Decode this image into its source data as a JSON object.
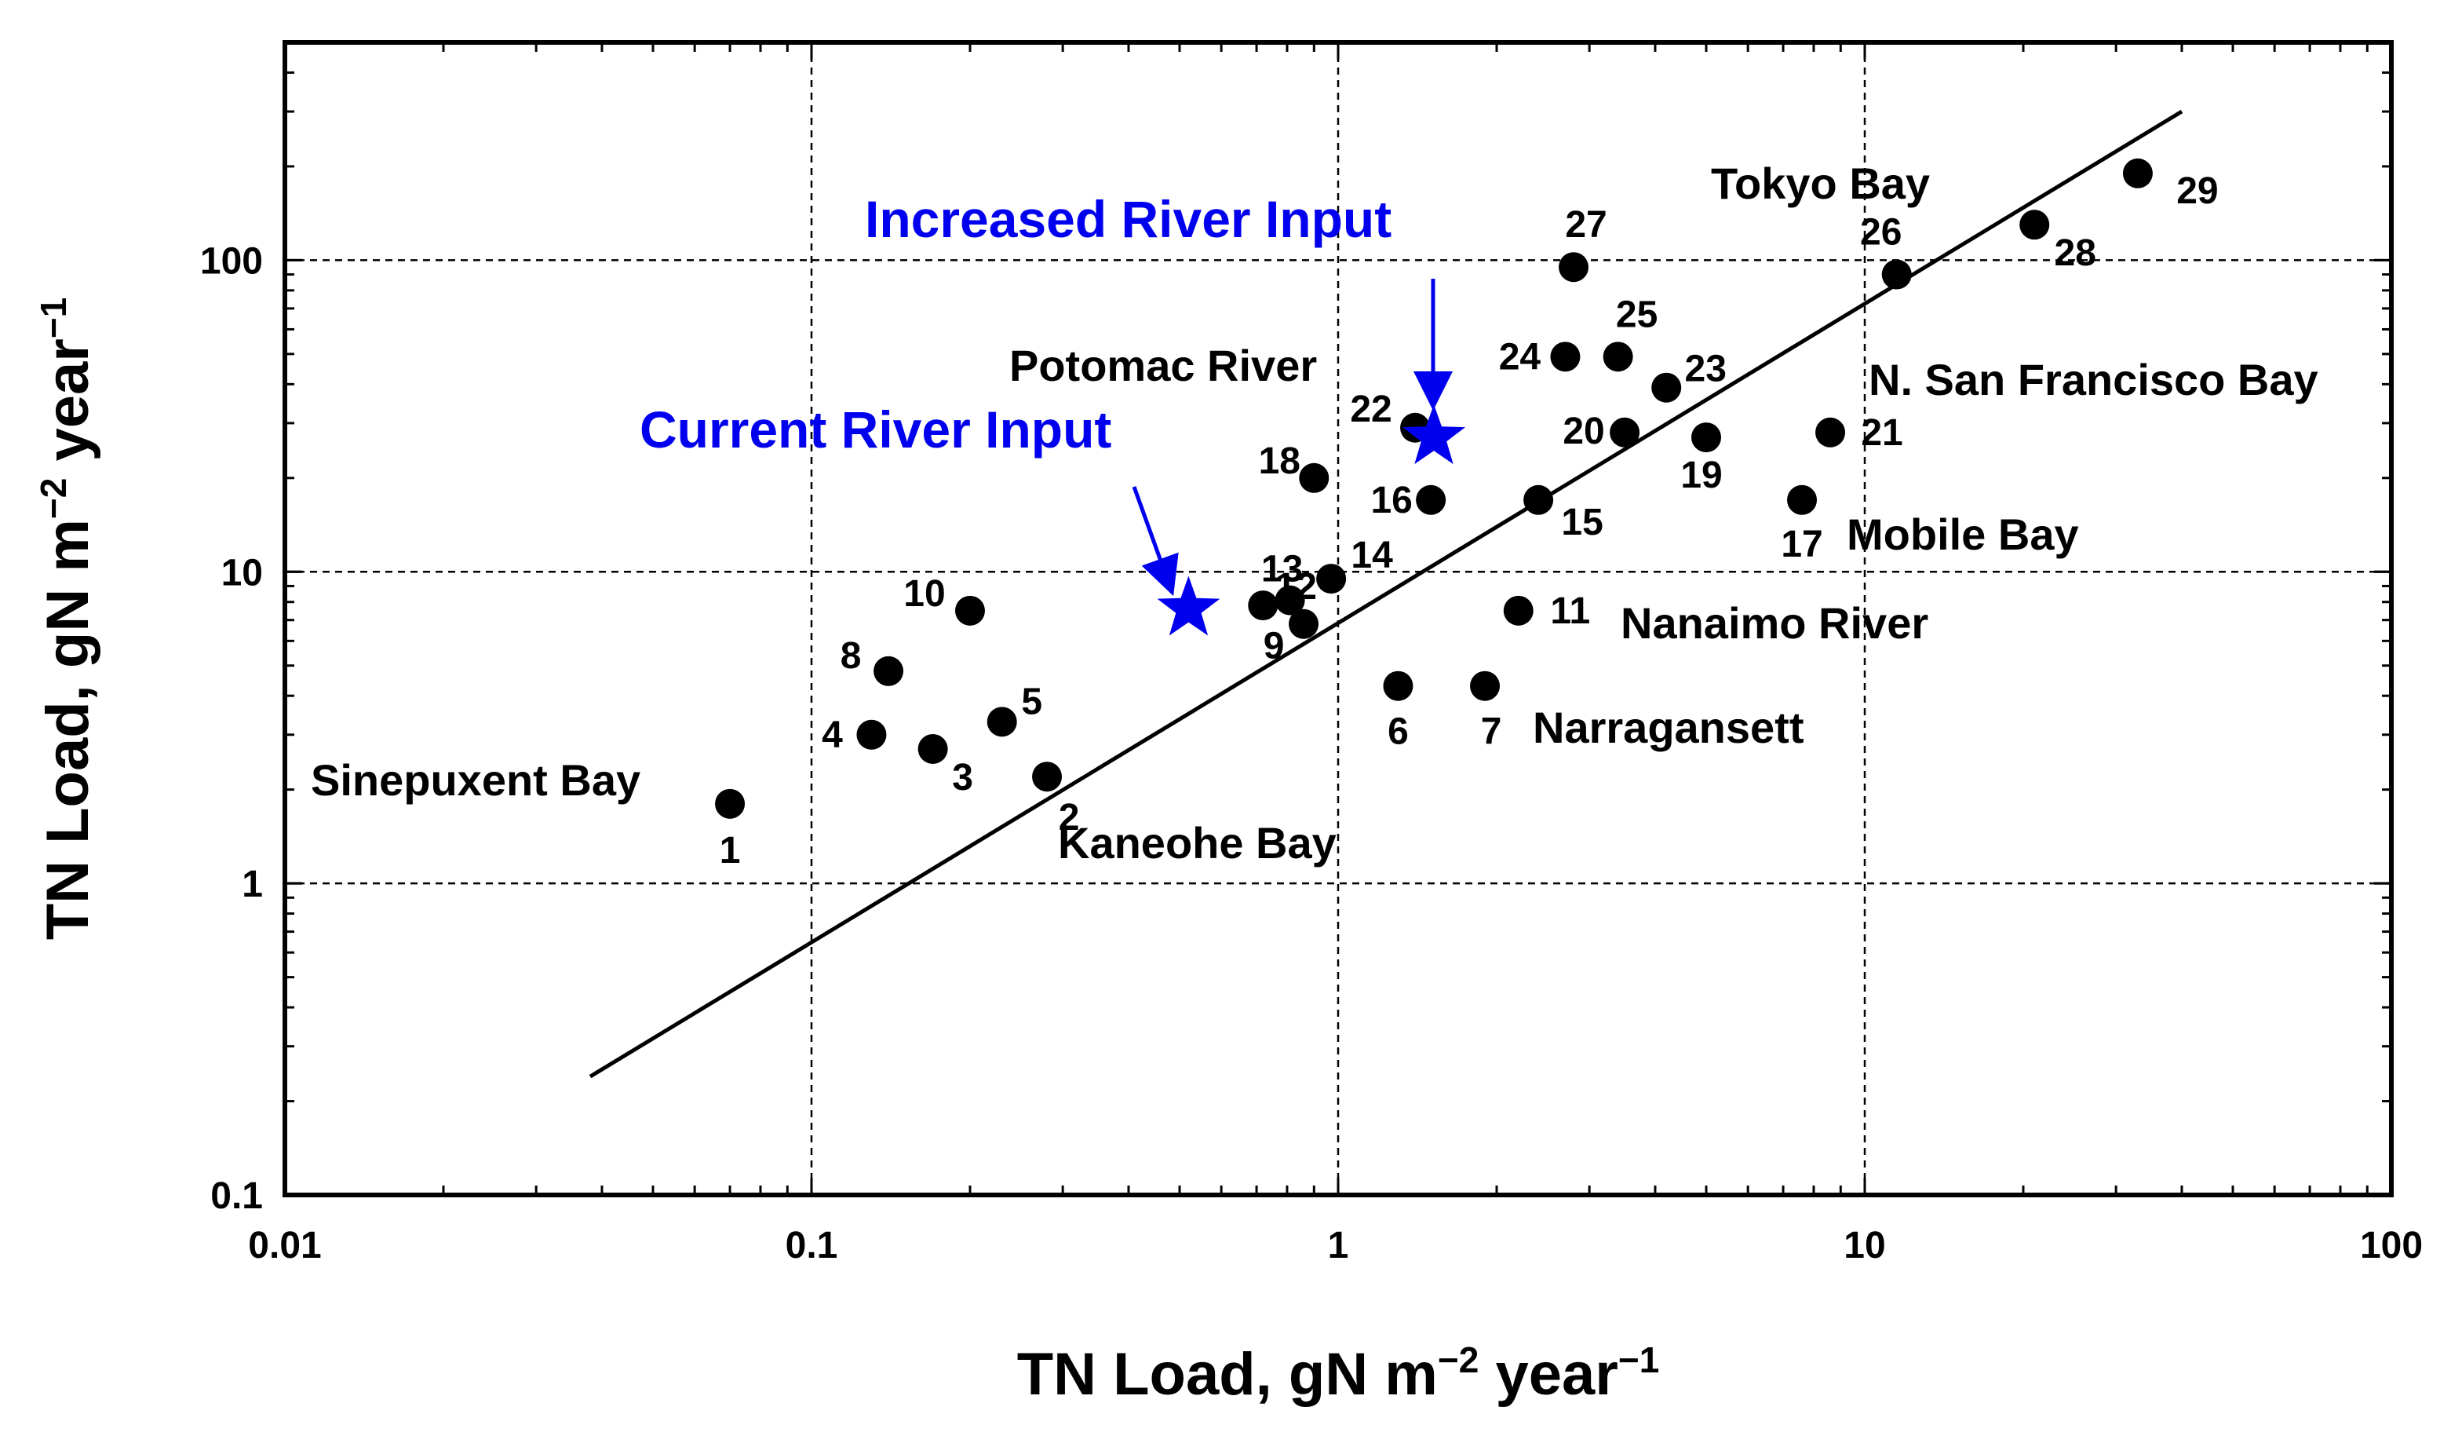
{
  "chart_data": {
    "type": "scatter",
    "title": "",
    "xlabel": "TN Load, gN m−2 year−1",
    "ylabel": "TN Load, gN m−2 year−1",
    "xscale": "log",
    "yscale": "log",
    "xlim": [
      0.01,
      100
    ],
    "ylim": [
      0.1,
      500
    ],
    "grid": true,
    "x_ticks": [
      0.01,
      0.1,
      1,
      10,
      100
    ],
    "x_tick_labels": [
      "0.01",
      "0.1",
      "1",
      "10",
      "100"
    ],
    "y_ticks": [
      0.1,
      1,
      10,
      100
    ],
    "y_tick_labels": [
      "0.1",
      "1",
      "10",
      "100"
    ],
    "axis_title_text": "TN Load, gN m",
    "axis_title_exp1": "−2",
    "axis_title_mid": " year",
    "axis_title_exp2": "−1",
    "points": [
      {
        "id": "1",
        "x": 0.07,
        "y": 1.8
      },
      {
        "id": "2",
        "x": 0.28,
        "y": 2.2
      },
      {
        "id": "3",
        "x": 0.17,
        "y": 2.7
      },
      {
        "id": "4",
        "x": 0.13,
        "y": 3.0
      },
      {
        "id": "5",
        "x": 0.23,
        "y": 3.3
      },
      {
        "id": "6",
        "x": 1.3,
        "y": 4.3
      },
      {
        "id": "7",
        "x": 1.9,
        "y": 4.3
      },
      {
        "id": "8",
        "x": 0.14,
        "y": 4.8
      },
      {
        "id": "9",
        "x": 0.86,
        "y": 6.8
      },
      {
        "id": "10",
        "x": 0.2,
        "y": 7.5
      },
      {
        "id": "11",
        "x": 2.2,
        "y": 7.5
      },
      {
        "id": "12",
        "x": 0.72,
        "y": 7.8
      },
      {
        "id": "13",
        "x": 0.81,
        "y": 8.1
      },
      {
        "id": "14",
        "x": 0.97,
        "y": 9.5
      },
      {
        "id": "15",
        "x": 2.4,
        "y": 17
      },
      {
        "id": "16",
        "x": 1.5,
        "y": 17
      },
      {
        "id": "17",
        "x": 7.6,
        "y": 17
      },
      {
        "id": "18",
        "x": 0.9,
        "y": 20
      },
      {
        "id": "19",
        "x": 5.0,
        "y": 27
      },
      {
        "id": "20",
        "x": 3.5,
        "y": 28
      },
      {
        "id": "21",
        "x": 8.6,
        "y": 28
      },
      {
        "id": "22",
        "x": 1.4,
        "y": 29
      },
      {
        "id": "23",
        "x": 4.2,
        "y": 39
      },
      {
        "id": "24",
        "x": 2.7,
        "y": 49
      },
      {
        "id": "25",
        "x": 3.4,
        "y": 49
      },
      {
        "id": "26",
        "x": 11.5,
        "y": 90
      },
      {
        "id": "27",
        "x": 2.8,
        "y": 95
      },
      {
        "id": "28",
        "x": 21,
        "y": 130
      },
      {
        "id": "29",
        "x": 33,
        "y": 190
      }
    ],
    "stars": [
      {
        "name": "Current River Input",
        "x": 0.52,
        "y": 7.6,
        "color": "#0000ee"
      },
      {
        "name": "Increased River Input",
        "x": 1.52,
        "y": 27,
        "color": "#0000ee"
      }
    ],
    "regression_line": {
      "x": [
        0.038,
        40
      ],
      "y": [
        0.24,
        300
      ]
    },
    "site_labels": {
      "sinepuxent": "Sinepuxent Bay",
      "kaneohe": "Kaneohe Bay",
      "narragansett": "Narragansett",
      "nanaimo": "Nanaimo River",
      "mobile": "Mobile Bay",
      "nsf": "N. San Francisco Bay",
      "tokyo": "Tokyo Bay",
      "potomac": "Potomac River"
    },
    "annotations": {
      "current": "Current River Input",
      "increased": "Increased River Input"
    },
    "colors": {
      "points": "#000000",
      "stars": "#0000ee",
      "grid": "#000000"
    }
  }
}
